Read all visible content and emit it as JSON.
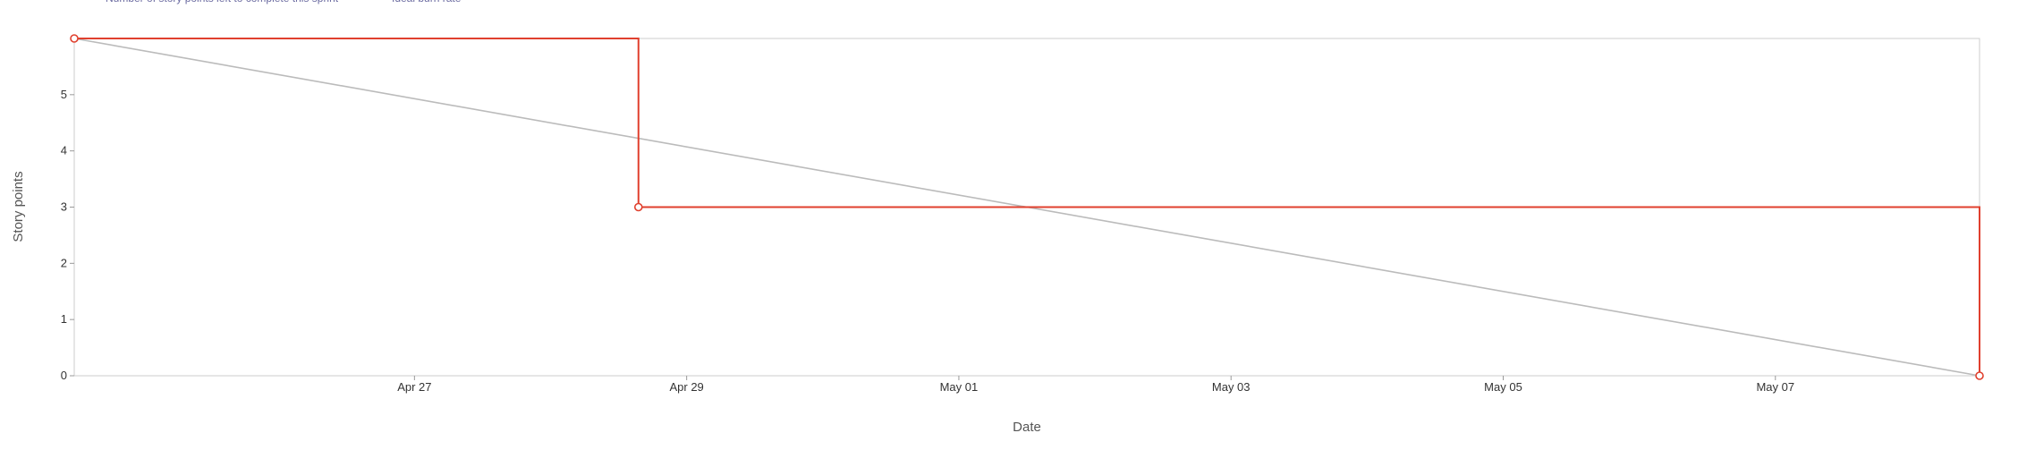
{
  "chart_data": {
    "type": "line",
    "title": "",
    "xlabel": "Date",
    "ylabel": "Story points",
    "ylim": [
      0,
      6
    ],
    "xlim": [
      "2026-04-24T12:00",
      "2026-05-08T12:00"
    ],
    "yticks": [
      0,
      1,
      2,
      3,
      4,
      5
    ],
    "xticks": [
      {
        "date": "2026-04-27",
        "label": "Apr 27"
      },
      {
        "date": "2026-04-29",
        "label": "Apr 29"
      },
      {
        "date": "2026-05-01",
        "label": "May 01"
      },
      {
        "date": "2026-05-03",
        "label": "May 03"
      },
      {
        "date": "2026-05-05",
        "label": "May 05"
      },
      {
        "date": "2026-05-07",
        "label": "May 07"
      }
    ],
    "grid": false,
    "legend": "top-left",
    "series": [
      {
        "name": "Number of story points left to complete this sprint",
        "style": "step",
        "color": "#e0402e",
        "points": [
          {
            "x": "2026-04-24T12:00",
            "y": 6
          },
          {
            "x": "2026-04-28T15:30",
            "y": 3
          },
          {
            "x": "2026-05-08T12:00",
            "y": 0
          }
        ]
      },
      {
        "name": "Ideal burn rate",
        "style": "line",
        "color": "#bbbbbb",
        "points": [
          {
            "x": "2026-04-24T12:00",
            "y": 6
          },
          {
            "x": "2026-05-08T12:00",
            "y": 0
          }
        ]
      }
    ]
  }
}
